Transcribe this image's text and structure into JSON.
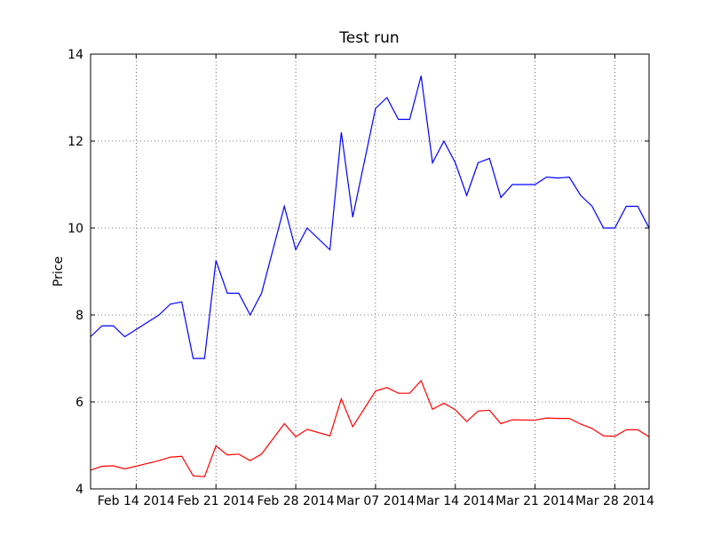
{
  "chart_data": {
    "type": "line",
    "title": "Test run",
    "ylabel": "Price",
    "x": [
      "2014-02-10",
      "2014-02-11",
      "2014-02-12",
      "2014-02-13",
      "2014-02-16",
      "2014-02-17",
      "2014-02-18",
      "2014-02-19",
      "2014-02-20",
      "2014-02-21",
      "2014-02-22",
      "2014-02-23",
      "2014-02-24",
      "2014-02-25",
      "2014-02-27",
      "2014-02-28",
      "2014-03-01",
      "2014-03-03",
      "2014-03-04",
      "2014-03-05",
      "2014-03-07",
      "2014-03-08",
      "2014-03-09",
      "2014-03-10",
      "2014-03-11",
      "2014-03-12",
      "2014-03-13",
      "2014-03-14",
      "2014-03-15",
      "2014-03-16",
      "2014-03-17",
      "2014-03-18",
      "2014-03-19",
      "2014-03-21",
      "2014-03-22",
      "2014-03-23",
      "2014-03-24",
      "2014-03-25",
      "2014-03-26",
      "2014-03-27",
      "2014-03-28",
      "2014-03-29",
      "2014-03-30",
      "2014-03-31"
    ],
    "series": [
      {
        "color": "#0000ff",
        "values": [
          7.5,
          7.75,
          7.75,
          7.5,
          8.0,
          8.25,
          8.3,
          7.0,
          7.0,
          9.25,
          8.5,
          8.5,
          8.0,
          8.5,
          10.5,
          9.5,
          10.0,
          9.5,
          12.2,
          10.25,
          12.75,
          13.0,
          12.5,
          12.5,
          13.5,
          11.5,
          12.0,
          11.5,
          10.75,
          11.5,
          11.6,
          10.7,
          11.0,
          11.0,
          11.17,
          11.15,
          11.17,
          10.75,
          10.5,
          10.0,
          10.0,
          10.5,
          10.5,
          10.0
        ]
      },
      {
        "color": "#ff0000",
        "values": [
          4.43,
          4.52,
          4.53,
          4.46,
          4.65,
          4.73,
          4.75,
          4.3,
          4.28,
          4.99,
          4.78,
          4.8,
          4.65,
          4.8,
          5.5,
          5.2,
          5.37,
          5.22,
          6.07,
          5.43,
          6.25,
          6.33,
          6.2,
          6.2,
          6.49,
          5.83,
          5.97,
          5.82,
          5.55,
          5.79,
          5.81,
          5.5,
          5.59,
          5.58,
          5.63,
          5.62,
          5.62,
          5.49,
          5.39,
          5.22,
          5.21,
          5.36,
          5.36,
          5.2
        ]
      }
    ],
    "xlim": [
      "2014-02-10",
      "2014-03-31"
    ],
    "xticks": [
      {
        "value": "2014-02-14",
        "label": "Feb 14 2014"
      },
      {
        "value": "2014-02-21",
        "label": "Feb 21 2014"
      },
      {
        "value": "2014-02-28",
        "label": "Feb 28 2014"
      },
      {
        "value": "2014-03-07",
        "label": "Mar 07 2014"
      },
      {
        "value": "2014-03-14",
        "label": "Mar 14 2014"
      },
      {
        "value": "2014-03-21",
        "label": "Mar 21 2014"
      },
      {
        "value": "2014-03-28",
        "label": "Mar 28 2014"
      }
    ],
    "ylim": [
      4,
      14
    ],
    "yticks": [
      4,
      6,
      8,
      10,
      12,
      14
    ],
    "grid": true
  }
}
